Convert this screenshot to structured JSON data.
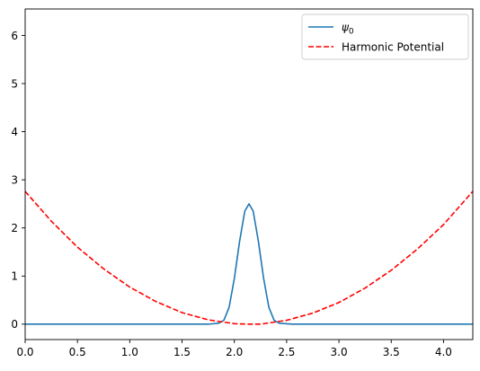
{
  "chart_data": {
    "type": "line",
    "title": "",
    "xlabel": "",
    "ylabel": "",
    "xlim": [
      0.0,
      4.28
    ],
    "ylim": [
      -0.32,
      6.55
    ],
    "grid": false,
    "legend_position": "top-right",
    "x_ticks": [
      0.0,
      0.5,
      1.0,
      1.5,
      2.0,
      2.5,
      3.0,
      3.5,
      4.0
    ],
    "x_tick_labels": [
      "0.0",
      "0.5",
      "1.0",
      "1.5",
      "2.0",
      "2.5",
      "3.0",
      "3.5",
      "4.0"
    ],
    "y_ticks": [
      0,
      1,
      2,
      3,
      4,
      5,
      6
    ],
    "y_tick_labels": [
      "0",
      "1",
      "2",
      "3",
      "4",
      "5",
      "6"
    ],
    "series": [
      {
        "name": "ψ₀",
        "legend_main": "ψ",
        "legend_sub": "0",
        "color": "#1f77b4",
        "style": "solid",
        "x": [
          0.0,
          0.5,
          1.0,
          1.5,
          1.75,
          1.85,
          1.9,
          1.95,
          2.0,
          2.05,
          2.1,
          2.14,
          2.18,
          2.23,
          2.28,
          2.33,
          2.38,
          2.43,
          2.55,
          3.0,
          3.5,
          4.0,
          4.28
        ],
        "y": [
          0.0,
          0.0,
          0.0,
          0.0,
          0.0,
          0.02,
          0.08,
          0.35,
          0.95,
          1.72,
          2.35,
          2.5,
          2.35,
          1.72,
          0.95,
          0.35,
          0.08,
          0.02,
          0.0,
          0.0,
          0.0,
          0.0,
          0.0
        ]
      },
      {
        "name": "Harmonic Potential",
        "color": "#ff0000",
        "style": "dashed",
        "x": [
          0.0,
          0.25,
          0.5,
          0.75,
          1.0,
          1.25,
          1.5,
          1.75,
          2.0,
          2.14,
          2.25,
          2.5,
          2.75,
          3.0,
          3.25,
          3.5,
          3.75,
          4.0,
          4.28
        ],
        "y": [
          2.76,
          2.14,
          1.6,
          1.15,
          0.77,
          0.47,
          0.24,
          0.09,
          0.01,
          0.0,
          0.0,
          0.08,
          0.23,
          0.45,
          0.75,
          1.12,
          1.56,
          2.07,
          2.76
        ]
      }
    ]
  }
}
